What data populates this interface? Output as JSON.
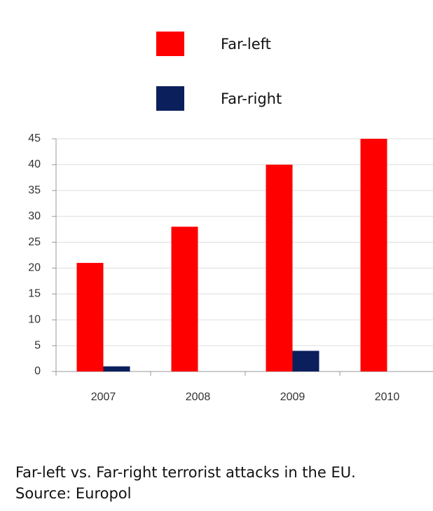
{
  "chart_data": {
    "type": "bar",
    "categories": [
      "2007",
      "2008",
      "2009",
      "2010"
    ],
    "series": [
      {
        "name": "Far-left",
        "color": "#ff0000",
        "values": [
          21,
          28,
          40,
          45
        ]
      },
      {
        "name": "Far-right",
        "color": "#0b1f5c",
        "values": [
          1,
          0,
          4,
          0
        ]
      }
    ],
    "ylim": [
      0,
      45
    ],
    "yticks": [
      0,
      5,
      10,
      15,
      20,
      25,
      30,
      35,
      40,
      45
    ],
    "grid": true,
    "legend": "top",
    "caption": [
      "Far-left vs. Far-right terrorist attacks in the EU.",
      "Source: Europol"
    ]
  }
}
